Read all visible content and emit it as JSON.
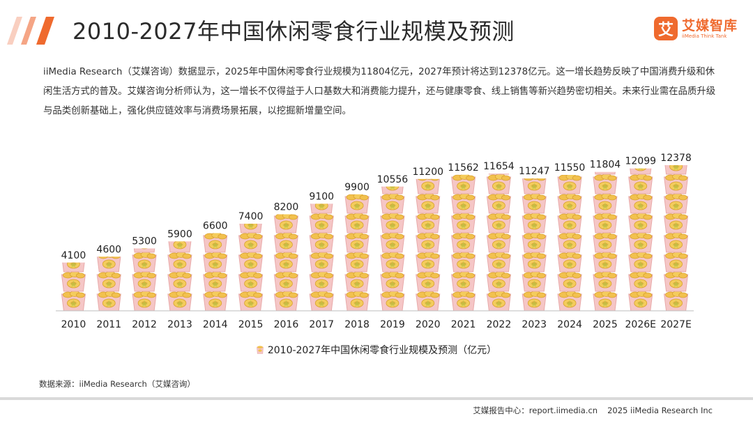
{
  "header": {
    "title": "2010-2027年中国休闲零食行业规模及预测",
    "logo_mark": "艾",
    "logo_cn": "艾媒智库",
    "logo_en": "iiMedia Think Tank"
  },
  "description": "iiMedia Research（艾媒咨询）数据显示，2025年中国休闲零食行业规模为11804亿元，2027年预计将达到12378亿元。这一增长趋势反映了中国消费升级和休闲生活方式的普及。艾媒咨询分析师认为，这一增长不仅得益于人口基数大和消费能力提升，还与健康零食、线上销售等新兴趋势密切相关。未来行业需在品质升级与品类创新基础上，强化供应链效率与消费场景拓展，以挖掘新增量空间。",
  "chart_data": {
    "type": "bar",
    "title": "2010-2027年中国休闲零食行业规模及预测（亿元）",
    "categories": [
      "2010",
      "2011",
      "2012",
      "2013",
      "2014",
      "2015",
      "2016",
      "2017",
      "2018",
      "2019",
      "2020",
      "2021",
      "2022",
      "2023",
      "2024",
      "2025",
      "2026E",
      "2027E"
    ],
    "values": [
      4100,
      4600,
      5300,
      5900,
      6600,
      7400,
      8200,
      9100,
      9900,
      10556,
      11200,
      11562,
      11654,
      11247,
      11550,
      11804,
      12099,
      12378
    ],
    "series": [
      {
        "name": "2010-2027年中国休闲零食行业规模及预测（亿元）",
        "values": [
          4100,
          4600,
          5300,
          5900,
          6600,
          7400,
          8200,
          9100,
          9900,
          10556,
          11200,
          11562,
          11654,
          11247,
          11550,
          11804,
          12099,
          12378
        ]
      }
    ],
    "xlabel": "",
    "ylabel": "",
    "ylim": [
      0,
      13500
    ],
    "grid": false,
    "legend": "bottom-center",
    "mark_style": "stacked snack-bag pictograms",
    "colors": {
      "bag": "#f5c6c6",
      "bag_stroke": "#e8a9a9",
      "chips": "#f2c14e",
      "chips_dark": "#d9a02f",
      "axis": "#bdbdbd"
    }
  },
  "source": "数据来源：iiMedia Research（艾媒咨询）",
  "footer": {
    "site": "艾媒报告中心：report.iimedia.cn",
    "copyright": "2025 iiMedia Research Inc"
  }
}
